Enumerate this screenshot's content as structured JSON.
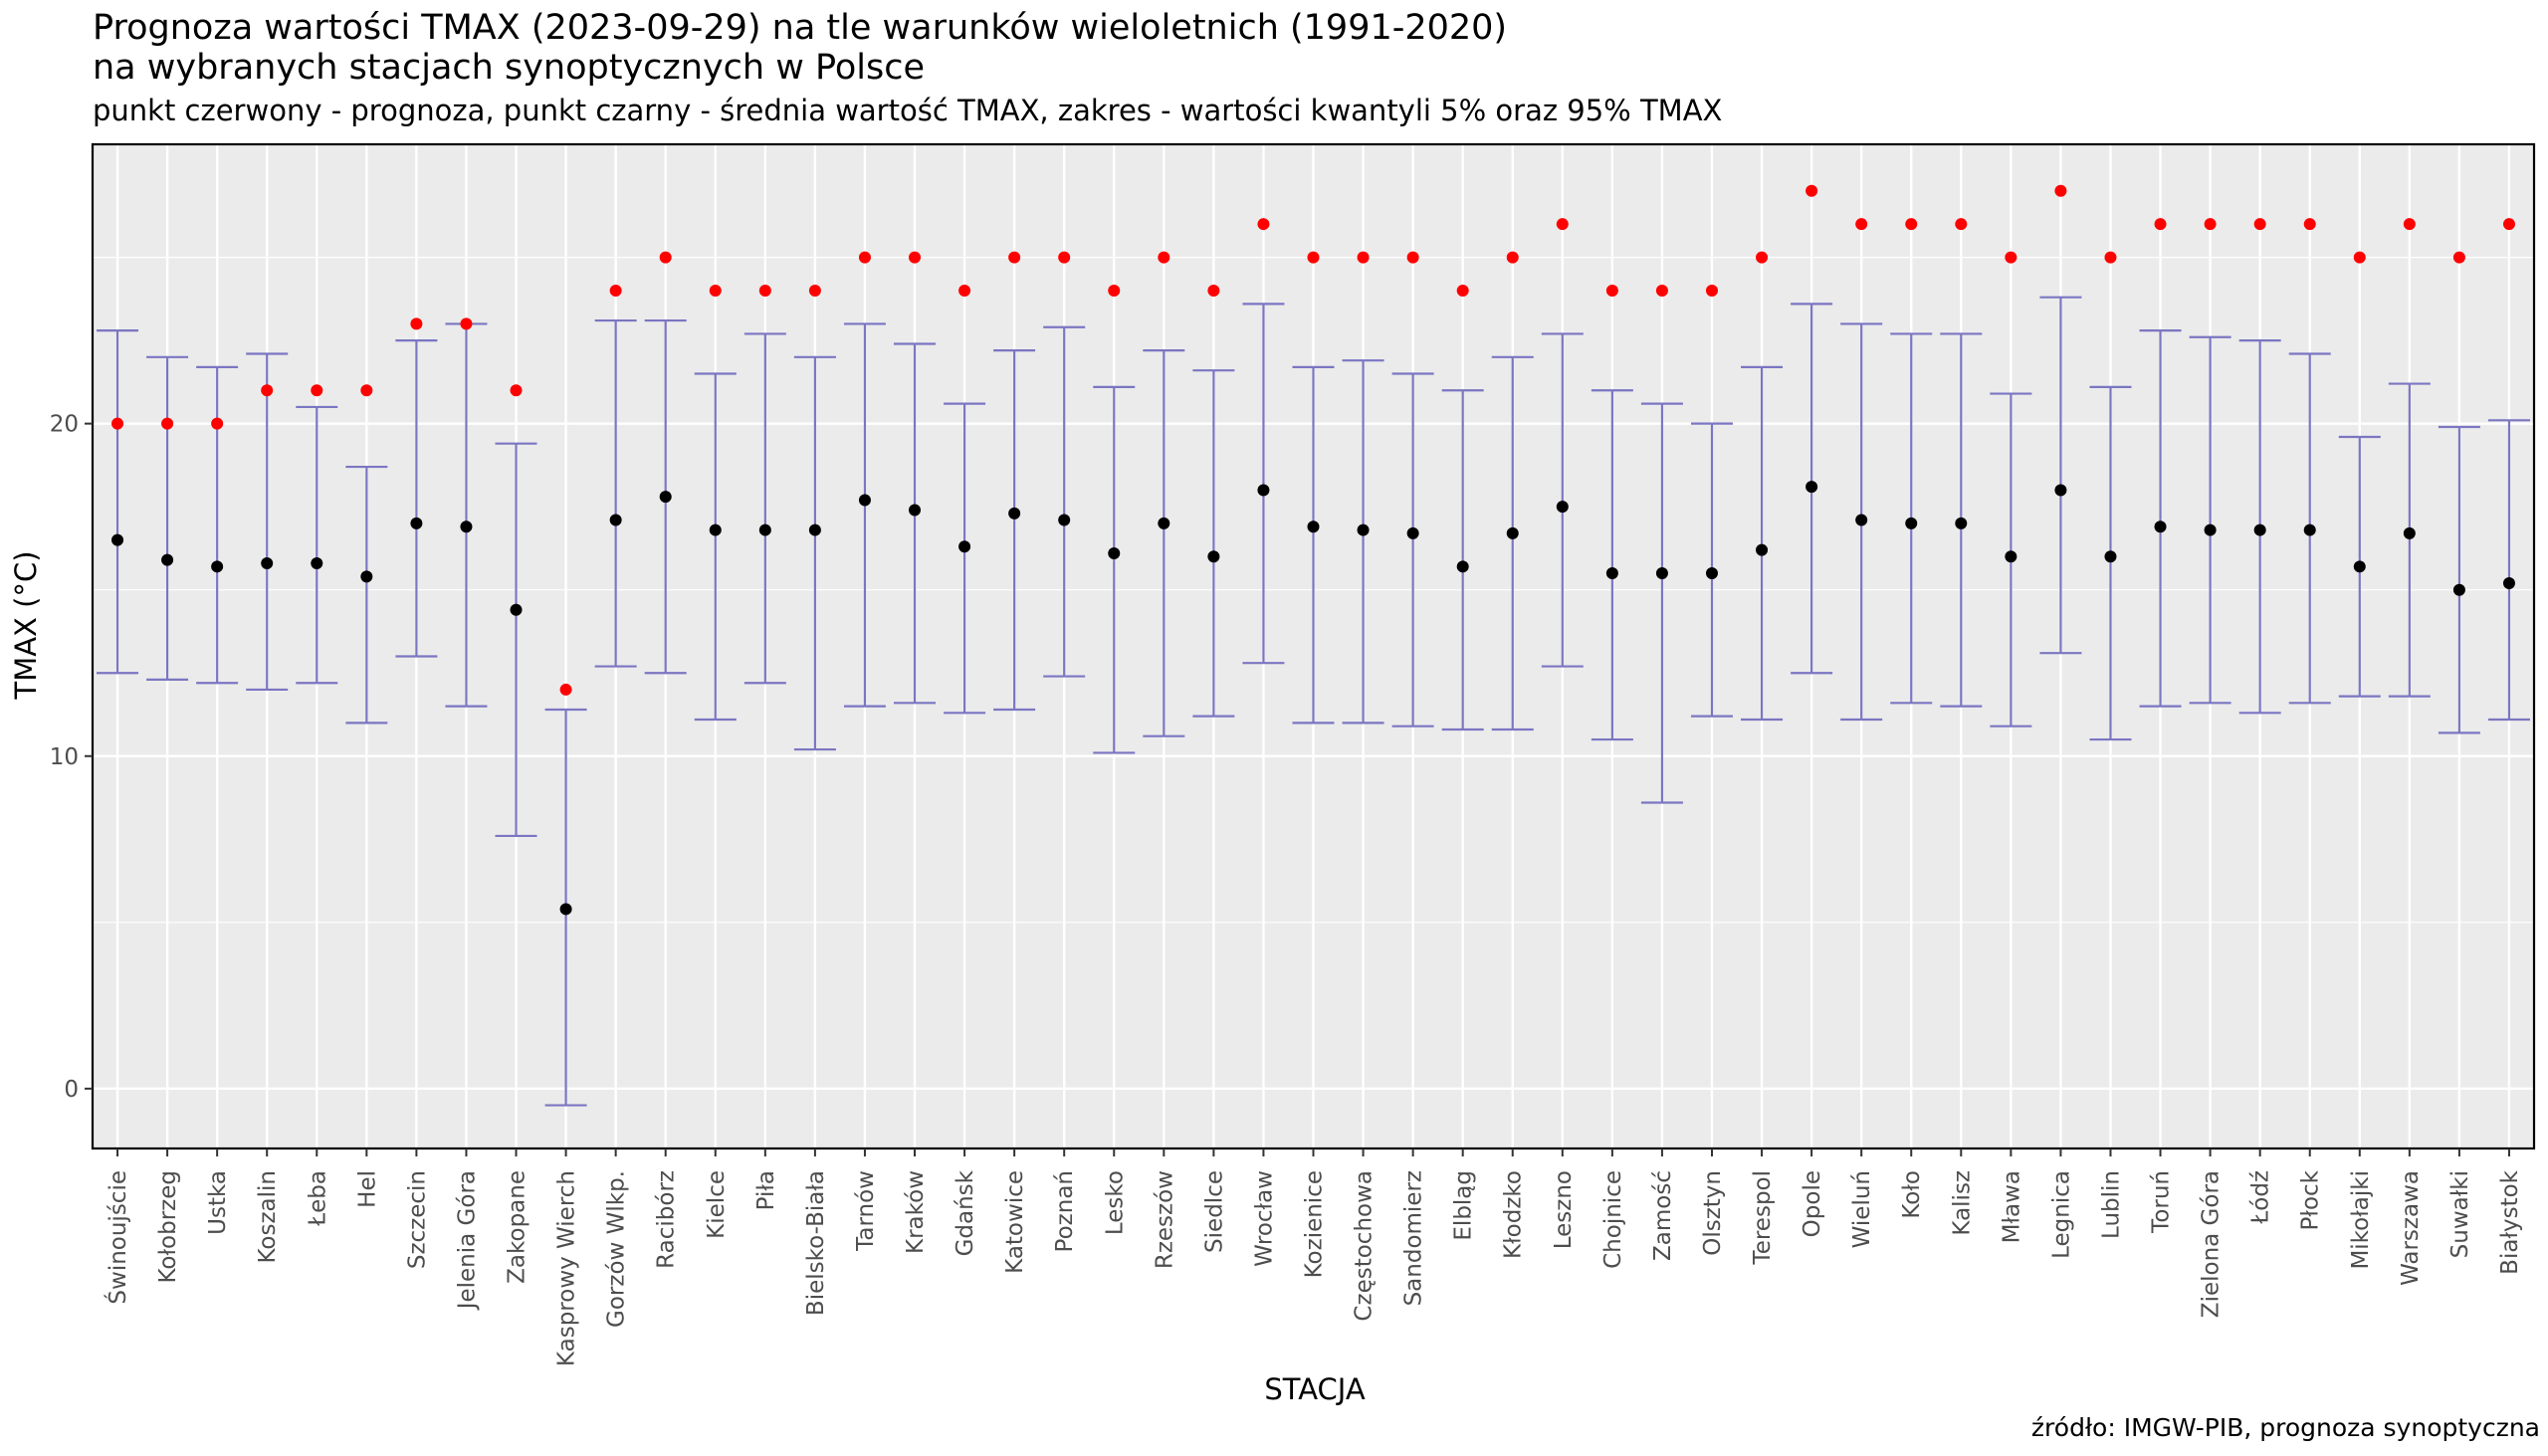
{
  "title_line1": "Prognoza wartości TMAX (2023-09-29) na tle warunków wieloletnich (1991-2020)",
  "title_line2": "na wybranych stacjach synoptycznych w Polsce",
  "subtitle": "punkt czerwony - prognoza, punkt czarny - średnia wartość TMAX, zakres - wartości kwantyli 5% oraz 95% TMAX",
  "caption": "źródło: IMGW-PIB, prognoza synoptyczna",
  "colors": {
    "panel": "#ebebeb",
    "grid": "#ffffff",
    "forecast": "#ff0000",
    "mean": "#000000",
    "range": "#7b76c2"
  },
  "chart_data": {
    "type": "errorbar",
    "xlabel": "STACJA",
    "ylabel": "TMAX (°C)",
    "ylim": [
      -1.8,
      28.4
    ],
    "y_ticks": [
      0,
      10,
      20
    ],
    "grid": true,
    "categories": [
      "Świnoujście",
      "Kołobrzeg",
      "Ustka",
      "Koszalin",
      "Łeba",
      "Hel",
      "Szczecin",
      "Jelenia Góra",
      "Zakopane",
      "Kasprowy Wierch",
      "Gorzów Wlkp.",
      "Racibórz",
      "Kielce",
      "Piła",
      "Bielsko-Biała",
      "Tarnów",
      "Kraków",
      "Gdańsk",
      "Katowice",
      "Poznań",
      "Lesko",
      "Rzeszów",
      "Siedlce",
      "Wrocław",
      "Kozienice",
      "Częstochowa",
      "Sandomierz",
      "Elbląg",
      "Kłodzko",
      "Leszno",
      "Chojnice",
      "Zamość",
      "Olsztyn",
      "Terespol",
      "Opole",
      "Wieluń",
      "Koło",
      "Kalisz",
      "Mława",
      "Legnica",
      "Lublin",
      "Toruń",
      "Zielona Góra",
      "Łódź",
      "Płock",
      "Mikołajki",
      "Warszawa",
      "Suwałki",
      "Białystok"
    ],
    "series": [
      {
        "name": "prognoza",
        "values": [
          20,
          20,
          20,
          21,
          21,
          21,
          23,
          23,
          21,
          12,
          24,
          25,
          24,
          24,
          24,
          25,
          25,
          24,
          25,
          25,
          24,
          25,
          24,
          26,
          25,
          25,
          25,
          24,
          25,
          26,
          24,
          24,
          24,
          25,
          27,
          26,
          26,
          26,
          25,
          27,
          25,
          26,
          26,
          26,
          26,
          25,
          26,
          25,
          26
        ]
      },
      {
        "name": "średnia",
        "values": [
          16.5,
          15.9,
          15.7,
          15.8,
          15.8,
          15.4,
          17.0,
          16.9,
          14.4,
          5.4,
          17.1,
          17.8,
          16.8,
          16.8,
          16.8,
          17.7,
          17.4,
          16.3,
          17.3,
          17.1,
          16.1,
          17.0,
          16.0,
          18.0,
          16.9,
          16.8,
          16.7,
          15.7,
          16.7,
          17.5,
          15.5,
          15.5,
          15.5,
          16.2,
          18.1,
          17.1,
          17.0,
          17.0,
          16.0,
          18.0,
          16.0,
          16.9,
          16.8,
          16.8,
          16.8,
          15.7,
          16.7,
          15.0,
          15.2
        ]
      },
      {
        "name": "kwantyl 5%",
        "values": [
          12.5,
          12.3,
          12.2,
          12.0,
          12.2,
          11.0,
          13.0,
          11.5,
          7.6,
          -0.5,
          12.7,
          12.5,
          11.1,
          12.2,
          10.2,
          11.5,
          11.6,
          11.3,
          11.4,
          12.4,
          10.1,
          10.6,
          11.2,
          12.8,
          11.0,
          11.0,
          10.9,
          10.8,
          10.8,
          12.7,
          10.5,
          8.6,
          11.2,
          11.1,
          12.5,
          11.1,
          11.6,
          11.5,
          10.9,
          13.1,
          10.5,
          11.5,
          11.6,
          11.3,
          11.6,
          11.8,
          11.8,
          10.7,
          11.1
        ]
      },
      {
        "name": "kwantyl 95%",
        "values": [
          22.8,
          22.0,
          21.7,
          22.1,
          20.5,
          18.7,
          22.5,
          23.0,
          19.4,
          11.4,
          23.1,
          23.1,
          21.5,
          22.7,
          22.0,
          23.0,
          22.4,
          20.6,
          22.2,
          22.9,
          21.1,
          22.2,
          21.6,
          23.6,
          21.7,
          21.9,
          21.5,
          21.0,
          22.0,
          22.7,
          21.0,
          20.6,
          20.0,
          21.7,
          23.6,
          23.0,
          22.7,
          22.7,
          20.9,
          23.8,
          21.1,
          22.8,
          22.6,
          22.5,
          22.1,
          19.6,
          21.2,
          19.9,
          20.1
        ]
      }
    ]
  }
}
